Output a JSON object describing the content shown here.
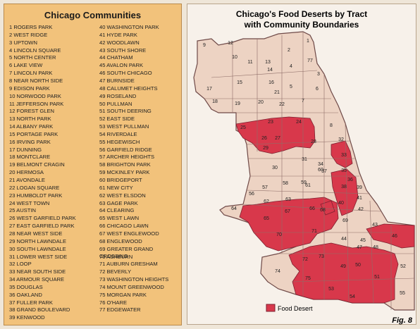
{
  "communities": {
    "title": "Chicago Communities",
    "items": [
      "1 ROGERS PARK",
      "2 WEST RIDGE",
      "3 UPTOWN",
      "4 LINCOLN SQUARE",
      "5 NORTH CENTER",
      "6 LAKE VIEW",
      "7 LINCOLN PARK",
      "8 NEAR NORTH SIDE",
      "9 EDISON PARK",
      "10 NORWOOD PARK",
      "11 JEFFERSON PARK",
      "12 FOREST GLEN",
      "13 NORTH PARK",
      "14 ALBANY PARK",
      "15 PORTAGE PARK",
      "16 IRVING PARK",
      "17 DUNNING",
      "18 MONTCLARE",
      "19 BELMONT CRAGIN",
      "20 HERMOSA",
      "21 AVONDALE",
      "22 LOGAN SQUARE",
      "23 HUMBOLDT PARK",
      "24 WEST TOWN",
      "25 AUSTIN",
      "26 WEST GARFIELD PARK",
      "27 EAST GARFIELD PARK",
      "28 NEAR WEST SIDE",
      "29 NORTH LAWNDALE",
      "30 SOUTH LAWNDALE",
      "31 LOWER WEST SIDE",
      "32 LOOP",
      "33 NEAR SOUTH SIDE",
      "34 ARMOUR SQUARE",
      "35 DOUGLAS",
      "36 OAKLAND",
      "37 FULLER PARK",
      "38 GRAND BOULEVARD",
      "39 KENWOOD",
      "40 WASHINGTON PARK",
      "41 HYDE PARK",
      "42 WOODLAWN",
      "43 SOUTH SHORE",
      "44 CHATHAM",
      "45 AVALON PARK",
      "46 SOUTH CHICAGO",
      "47 BURNSIDE",
      "48 CALUMET HEIGHTS",
      "49 ROSELAND",
      "50 PULLMAN",
      "51 SOUTH DEERING",
      "52 EAST SIDE",
      "53 WEST PULLMAN",
      "54 RIVERDALE",
      "55 HEGEWISCH",
      "56 GARFIELD RIDGE",
      "57 ARCHER HEIGHTS",
      "58 BRIGHTON PARK",
      "59 MCKINLEY PARK",
      "60 BRIDGEPORT",
      "61 NEW CITY",
      "62 WEST ELSDON",
      "63 GAGE PARK",
      "64 CLEARING",
      "65 WEST LAWN",
      "66 CHICAGO LAWN",
      "67 WEST ENGLEWOOD",
      "68 ENGLEWOOD",
      "69 GREATER GRAND CROSSING",
      "70 ASHBURN",
      "71 AUBURN GRESHAM",
      "72 BEVERLY",
      "73 WASHINGTON HEIGHTS",
      "74 MOUNT GREENWOOD",
      "75 MORGAN PARK",
      "76 O'HARE",
      "77 EDGEWATER"
    ]
  },
  "map": {
    "title": [
      "Chicago's Food Deserts by Tract",
      "with Community Boundaries"
    ],
    "labels": [
      "1",
      "2",
      "3",
      "4",
      "5",
      "6",
      "7",
      "8",
      "9",
      "10",
      "11",
      "12",
      "13",
      "14",
      "15",
      "16",
      "17",
      "18",
      "19",
      "20",
      "21",
      "22",
      "23",
      "24",
      "25",
      "26",
      "27",
      "28",
      "29",
      "30",
      "31",
      "32",
      "33",
      "34",
      "35",
      "36",
      "37",
      "38",
      "39",
      "40",
      "41",
      "42",
      "43",
      "44",
      "45",
      "46",
      "47",
      "48",
      "49",
      "50",
      "51",
      "52",
      "53",
      "54",
      "55",
      "56",
      "57",
      "58",
      "59",
      "60",
      "61",
      "62",
      "63",
      "64",
      "65",
      "66",
      "67",
      "68",
      "69",
      "70",
      "71",
      "72",
      "73",
      "74",
      "75",
      "77"
    ],
    "legend": "Food Desert",
    "figure": "Fig. 8"
  }
}
